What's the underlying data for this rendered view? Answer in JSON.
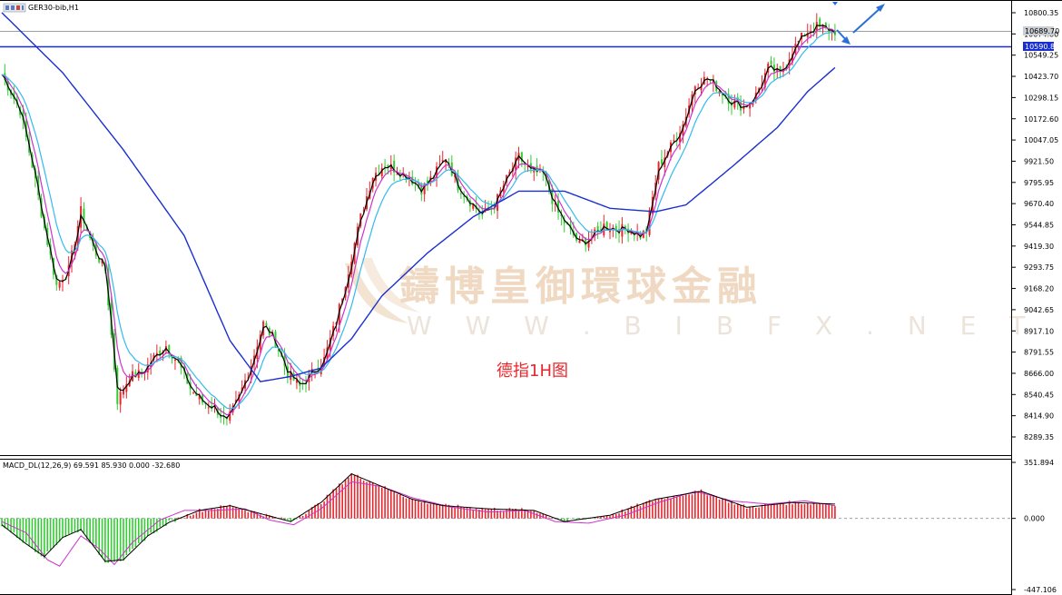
{
  "window": {
    "title": "GER30-bib,H1",
    "icon_name": "chart-window-icon"
  },
  "watermark": {
    "brand": "鑄博皇御環球金融",
    "url": "W W W . B I B F X . N E T"
  },
  "annotation": {
    "text": "德指1H图"
  },
  "price_panel": {
    "price_labels": [
      "10800.35",
      "10674.80",
      "10549.25",
      "10423.70",
      "10298.15",
      "10172.60",
      "10047.05",
      "9921.50",
      "9795.95",
      "9670.40",
      "9544.85",
      "9419.30",
      "9293.75",
      "9168.20",
      "9042.65",
      "8917.10",
      "8791.55",
      "8666.00",
      "8540.45",
      "8414.90",
      "8289.35"
    ],
    "bid_label": "10689.70",
    "level_label": "10590.80"
  },
  "macd_panel": {
    "title": "MACD_DL(12,26,9) 69.591 85.930 0.000 -32.680",
    "labels": [
      "351.894",
      "0.000",
      "-447.106"
    ]
  },
  "colors": {
    "bull": "#e8262d",
    "bear": "#33cc33",
    "ma_fast": "#000000",
    "ma_mid": "#cc33cc",
    "ma_slow": "#33bbee",
    "ma_long": "#1a2fd0",
    "level_line": "#1a2fd0",
    "arrow": "#2a6fd8",
    "macd_signal": "#cc33cc",
    "macd_line": "#000000"
  },
  "chart_data": {
    "type": "candlestick",
    "title": "GER30-bib,H1",
    "ylim": [
      8222,
      10863
    ],
    "horizontal_level": 10590.8,
    "close_path": [
      {
        "i": 0,
        "v": 10440
      },
      {
        "i": 6,
        "v": 10230
      },
      {
        "i": 10,
        "v": 9910
      },
      {
        "i": 14,
        "v": 9545
      },
      {
        "i": 18,
        "v": 9210
      },
      {
        "i": 22,
        "v": 9300
      },
      {
        "i": 26,
        "v": 9645
      },
      {
        "i": 30,
        "v": 9430
      },
      {
        "i": 34,
        "v": 9300
      },
      {
        "i": 38,
        "v": 8540
      },
      {
        "i": 42,
        "v": 8680
      },
      {
        "i": 46,
        "v": 8700
      },
      {
        "i": 50,
        "v": 8790
      },
      {
        "i": 54,
        "v": 8860
      },
      {
        "i": 58,
        "v": 8760
      },
      {
        "i": 62,
        "v": 8610
      },
      {
        "i": 66,
        "v": 8530
      },
      {
        "i": 70,
        "v": 8500
      },
      {
        "i": 74,
        "v": 8410
      },
      {
        "i": 78,
        "v": 8560
      },
      {
        "i": 82,
        "v": 8750
      },
      {
        "i": 86,
        "v": 8990
      },
      {
        "i": 90,
        "v": 8880
      },
      {
        "i": 94,
        "v": 8700
      },
      {
        "i": 98,
        "v": 8620
      },
      {
        "i": 102,
        "v": 8700
      },
      {
        "i": 106,
        "v": 8780
      },
      {
        "i": 110,
        "v": 9010
      },
      {
        "i": 114,
        "v": 9300
      },
      {
        "i": 118,
        "v": 9610
      },
      {
        "i": 122,
        "v": 9850
      },
      {
        "i": 126,
        "v": 9920
      },
      {
        "i": 130,
        "v": 9880
      },
      {
        "i": 134,
        "v": 9840
      },
      {
        "i": 138,
        "v": 9770
      },
      {
        "i": 142,
        "v": 9850
      },
      {
        "i": 146,
        "v": 9960
      },
      {
        "i": 150,
        "v": 9790
      },
      {
        "i": 154,
        "v": 9700
      },
      {
        "i": 158,
        "v": 9620
      },
      {
        "i": 162,
        "v": 9680
      },
      {
        "i": 166,
        "v": 9830
      },
      {
        "i": 170,
        "v": 9960
      },
      {
        "i": 174,
        "v": 9870
      },
      {
        "i": 178,
        "v": 9860
      },
      {
        "i": 182,
        "v": 9660
      },
      {
        "i": 186,
        "v": 9550
      },
      {
        "i": 190,
        "v": 9450
      },
      {
        "i": 194,
        "v": 9490
      },
      {
        "i": 198,
        "v": 9560
      },
      {
        "i": 202,
        "v": 9540
      },
      {
        "i": 206,
        "v": 9540
      },
      {
        "i": 210,
        "v": 9500
      },
      {
        "i": 212,
        "v": 9530
      },
      {
        "i": 216,
        "v": 9910
      },
      {
        "i": 220,
        "v": 10020
      },
      {
        "i": 224,
        "v": 10150
      },
      {
        "i": 228,
        "v": 10380
      },
      {
        "i": 232,
        "v": 10420
      },
      {
        "i": 236,
        "v": 10350
      },
      {
        "i": 240,
        "v": 10280
      },
      {
        "i": 244,
        "v": 10250
      },
      {
        "i": 248,
        "v": 10320
      },
      {
        "i": 252,
        "v": 10480
      },
      {
        "i": 256,
        "v": 10440
      },
      {
        "i": 260,
        "v": 10580
      },
      {
        "i": 264,
        "v": 10680
      },
      {
        "i": 268,
        "v": 10720
      },
      {
        "i": 272,
        "v": 10700
      },
      {
        "i": 274,
        "v": 10690
      }
    ],
    "ma_long_path": [
      {
        "i": 0,
        "v": 10800
      },
      {
        "i": 20,
        "v": 10450
      },
      {
        "i": 40,
        "v": 10000
      },
      {
        "i": 60,
        "v": 9500
      },
      {
        "i": 75,
        "v": 8890
      },
      {
        "i": 85,
        "v": 8650
      },
      {
        "i": 95,
        "v": 8680
      },
      {
        "i": 105,
        "v": 8730
      },
      {
        "i": 115,
        "v": 8900
      },
      {
        "i": 125,
        "v": 9150
      },
      {
        "i": 140,
        "v": 9400
      },
      {
        "i": 155,
        "v": 9610
      },
      {
        "i": 170,
        "v": 9760
      },
      {
        "i": 185,
        "v": 9760
      },
      {
        "i": 200,
        "v": 9660
      },
      {
        "i": 215,
        "v": 9640
      },
      {
        "i": 225,
        "v": 9680
      },
      {
        "i": 240,
        "v": 9900
      },
      {
        "i": 255,
        "v": 10130
      },
      {
        "i": 265,
        "v": 10340
      },
      {
        "i": 274,
        "v": 10480
      }
    ],
    "macd_ylim": [
      -447.106,
      351.894
    ],
    "macd_path": [
      {
        "i": 0,
        "v": -40
      },
      {
        "i": 8,
        "v": -160
      },
      {
        "i": 14,
        "v": -240
      },
      {
        "i": 20,
        "v": -120
      },
      {
        "i": 26,
        "v": -70
      },
      {
        "i": 34,
        "v": -270
      },
      {
        "i": 40,
        "v": -260
      },
      {
        "i": 48,
        "v": -110
      },
      {
        "i": 55,
        "v": -25
      },
      {
        "i": 65,
        "v": 50
      },
      {
        "i": 75,
        "v": 80
      },
      {
        "i": 85,
        "v": 30
      },
      {
        "i": 95,
        "v": -20
      },
      {
        "i": 105,
        "v": 100
      },
      {
        "i": 115,
        "v": 280
      },
      {
        "i": 125,
        "v": 200
      },
      {
        "i": 135,
        "v": 120
      },
      {
        "i": 145,
        "v": 80
      },
      {
        "i": 160,
        "v": 60
      },
      {
        "i": 175,
        "v": 50
      },
      {
        "i": 185,
        "v": -20
      },
      {
        "i": 200,
        "v": 20
      },
      {
        "i": 215,
        "v": 120
      },
      {
        "i": 230,
        "v": 170
      },
      {
        "i": 245,
        "v": 70
      },
      {
        "i": 260,
        "v": 100
      },
      {
        "i": 274,
        "v": 90
      }
    ],
    "signal_path": [
      {
        "i": 0,
        "v": -20
      },
      {
        "i": 8,
        "v": -90
      },
      {
        "i": 15,
        "v": -260
      },
      {
        "i": 19,
        "v": -300
      },
      {
        "i": 26,
        "v": -110
      },
      {
        "i": 32,
        "v": -190
      },
      {
        "i": 37,
        "v": -290
      },
      {
        "i": 43,
        "v": -150
      },
      {
        "i": 52,
        "v": -10
      },
      {
        "i": 60,
        "v": 50
      },
      {
        "i": 70,
        "v": 50
      },
      {
        "i": 80,
        "v": 60
      },
      {
        "i": 88,
        "v": -10
      },
      {
        "i": 96,
        "v": -40
      },
      {
        "i": 105,
        "v": 60
      },
      {
        "i": 115,
        "v": 230
      },
      {
        "i": 125,
        "v": 200
      },
      {
        "i": 135,
        "v": 130
      },
      {
        "i": 148,
        "v": 70
      },
      {
        "i": 160,
        "v": 40
      },
      {
        "i": 172,
        "v": 50
      },
      {
        "i": 182,
        "v": -20
      },
      {
        "i": 193,
        "v": -30
      },
      {
        "i": 205,
        "v": 20
      },
      {
        "i": 216,
        "v": 100
      },
      {
        "i": 228,
        "v": 170
      },
      {
        "i": 240,
        "v": 110
      },
      {
        "i": 252,
        "v": 90
      },
      {
        "i": 264,
        "v": 110
      },
      {
        "i": 274,
        "v": 80
      }
    ]
  }
}
